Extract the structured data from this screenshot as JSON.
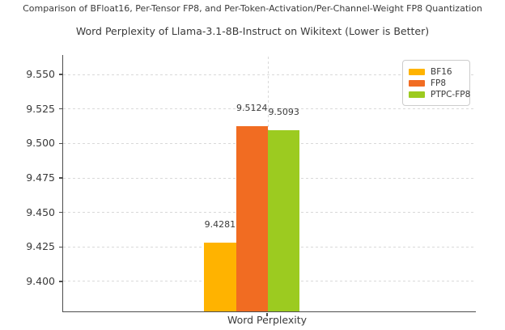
{
  "figure": {
    "suptitle": "Comparison of BFloat16, Per-Tensor FP8, and Per-Token-Activation/Per-Channel-Weight FP8 Quantization"
  },
  "chart_data": {
    "type": "bar",
    "title": "Word Perplexity of Llama-3.1-8B-Instruct on Wikitext (Lower is Better)",
    "suptitle": "Comparison of BFloat16, Per-Tensor FP8, and Per-Token-Activation/Per-Channel-Weight FP8 Quantization",
    "categories": [
      "Word Perplexity"
    ],
    "series": [
      {
        "name": "BF16",
        "value": 9.4281,
        "value_label": "9.4281",
        "color": "#FFB300"
      },
      {
        "name": "FP8",
        "value": 9.5124,
        "value_label": "9.5124",
        "color": "#F16C22"
      },
      {
        "name": "PTPC-FP8",
        "value": 9.5093,
        "value_label": "9.5093",
        "color": "#9CCB20"
      }
    ],
    "xlabel": "",
    "ylabel": "",
    "ylim": [
      9.3783,
      9.5641
    ],
    "yticks": [
      9.4,
      9.425,
      9.45,
      9.475,
      9.5,
      9.525,
      9.55
    ],
    "ytick_labels": [
      "9.400",
      "9.425",
      "9.450",
      "9.475",
      "9.500",
      "9.525",
      "9.550"
    ],
    "grid": true,
    "grid_style": "dashed",
    "legend": {
      "position": "upper right",
      "items": [
        "BF16",
        "FP8",
        "PTPC-FP8"
      ]
    },
    "colors": {
      "spine": "#4d4d4d",
      "gridline": "#d9d9d9",
      "text": "#3a3a3a",
      "background": "#ffffff"
    }
  }
}
